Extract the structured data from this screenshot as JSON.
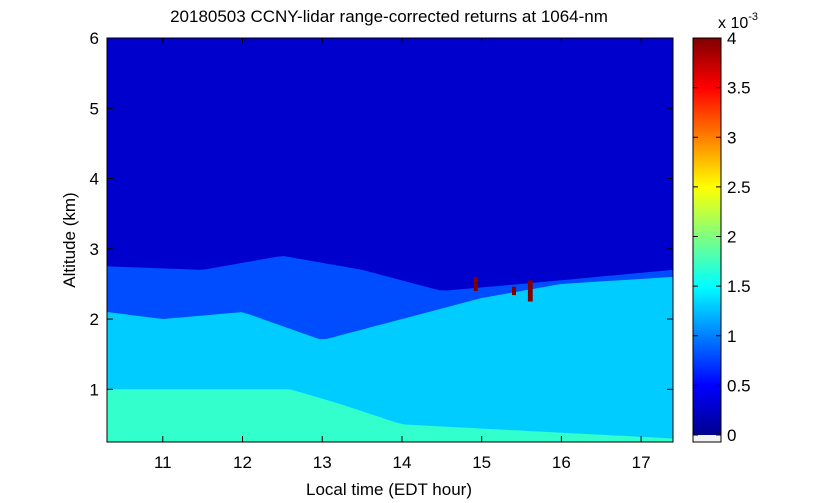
{
  "chart_data": {
    "type": "heatmap",
    "title": "20180503 CCNY-lidar range-corrected returns at 1064-nm",
    "xlabel": "Local time (EDT hour)",
    "ylabel": "Altitude (km)",
    "xlim": [
      10.3,
      17.4
    ],
    "ylim": [
      0.25,
      6
    ],
    "x_ticks": [
      "11",
      "12",
      "13",
      "14",
      "15",
      "16",
      "17"
    ],
    "y_ticks": [
      "1",
      "2",
      "3",
      "4",
      "5",
      "6"
    ],
    "colorbar": {
      "clim": [
        0,
        0.004
      ],
      "ticks": [
        "0",
        "0.5",
        "1",
        "1.5",
        "2",
        "2.5",
        "3",
        "3.5",
        "4"
      ],
      "exponent_label": "x 10",
      "exponent_power": "-3",
      "colormap": "jet"
    },
    "colorbar_ticks_data": [
      0,
      0.0005,
      0.001,
      0.0015,
      0.002,
      0.0025,
      0.003,
      0.0035,
      0.004
    ],
    "x_tick_values": [
      11,
      12,
      13,
      14,
      15,
      16,
      17
    ],
    "y_tick_values": [
      1,
      2,
      3,
      4,
      5,
      6
    ],
    "layers": {
      "boundary_layer_top_km": [
        {
          "x": 10.3,
          "y": 2.1
        },
        {
          "x": 11.0,
          "y": 2.0
        },
        {
          "x": 12.0,
          "y": 2.1
        },
        {
          "x": 12.5,
          "y": 1.9
        },
        {
          "x": 13.0,
          "y": 1.7
        },
        {
          "x": 14.0,
          "y": 2.0
        },
        {
          "x": 15.0,
          "y": 2.3
        },
        {
          "x": 16.0,
          "y": 2.5
        },
        {
          "x": 17.4,
          "y": 2.6
        }
      ],
      "residual_layer_top_km": [
        {
          "x": 10.3,
          "y": 2.75
        },
        {
          "x": 11.5,
          "y": 2.7
        },
        {
          "x": 12.5,
          "y": 2.9
        },
        {
          "x": 13.5,
          "y": 2.7
        },
        {
          "x": 14.5,
          "y": 2.4
        },
        {
          "x": 15.5,
          "y": 2.5
        },
        {
          "x": 17.4,
          "y": 2.7
        }
      ],
      "near_surface_value": 0.0017,
      "boundary_layer_value": 0.0013,
      "residual_layer_value": 0.0008,
      "free_troposphere_value": 0.0003
    },
    "clouds": [
      {
        "x": 14.9,
        "y": 2.5,
        "w": 0.05,
        "h": 0.2,
        "value": 0.004
      },
      {
        "x": 15.38,
        "y": 2.4,
        "w": 0.05,
        "h": 0.12,
        "value": 0.004
      },
      {
        "x": 15.58,
        "y": 2.4,
        "w": 0.06,
        "h": 0.3,
        "value": 0.004
      }
    ]
  }
}
